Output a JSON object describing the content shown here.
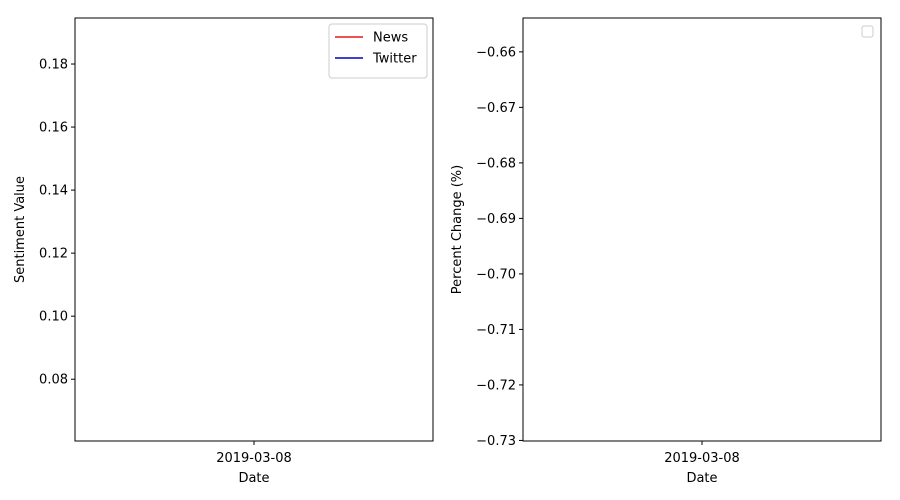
{
  "chart_data": [
    {
      "type": "line",
      "title": "",
      "xlabel": "Date",
      "ylabel": "Sentiment Value",
      "x_ticks": [
        "2019-03-08"
      ],
      "y_ticks": [
        "0.08",
        "0.10",
        "0.12",
        "0.14",
        "0.16",
        "0.18"
      ],
      "ylim": [
        0.0604,
        0.1946
      ],
      "grid": false,
      "legend_position": "top-right",
      "series": [
        {
          "name": "News",
          "color": "#e41a1c",
          "x": [],
          "values": []
        },
        {
          "name": "Twitter",
          "color": "#0000bb",
          "x": [],
          "values": []
        }
      ]
    },
    {
      "type": "line",
      "title": "",
      "xlabel": "Date",
      "ylabel": "Percent Change (%)",
      "x_ticks": [
        "2019-03-08"
      ],
      "y_ticks": [
        "−0.66",
        "−0.67",
        "−0.68",
        "−0.69",
        "−0.70",
        "−0.71",
        "−0.72",
        "−0.73"
      ],
      "ylim": [
        -0.7301,
        -0.6539
      ],
      "grid": false,
      "legend_position": "top-right",
      "series": []
    }
  ]
}
